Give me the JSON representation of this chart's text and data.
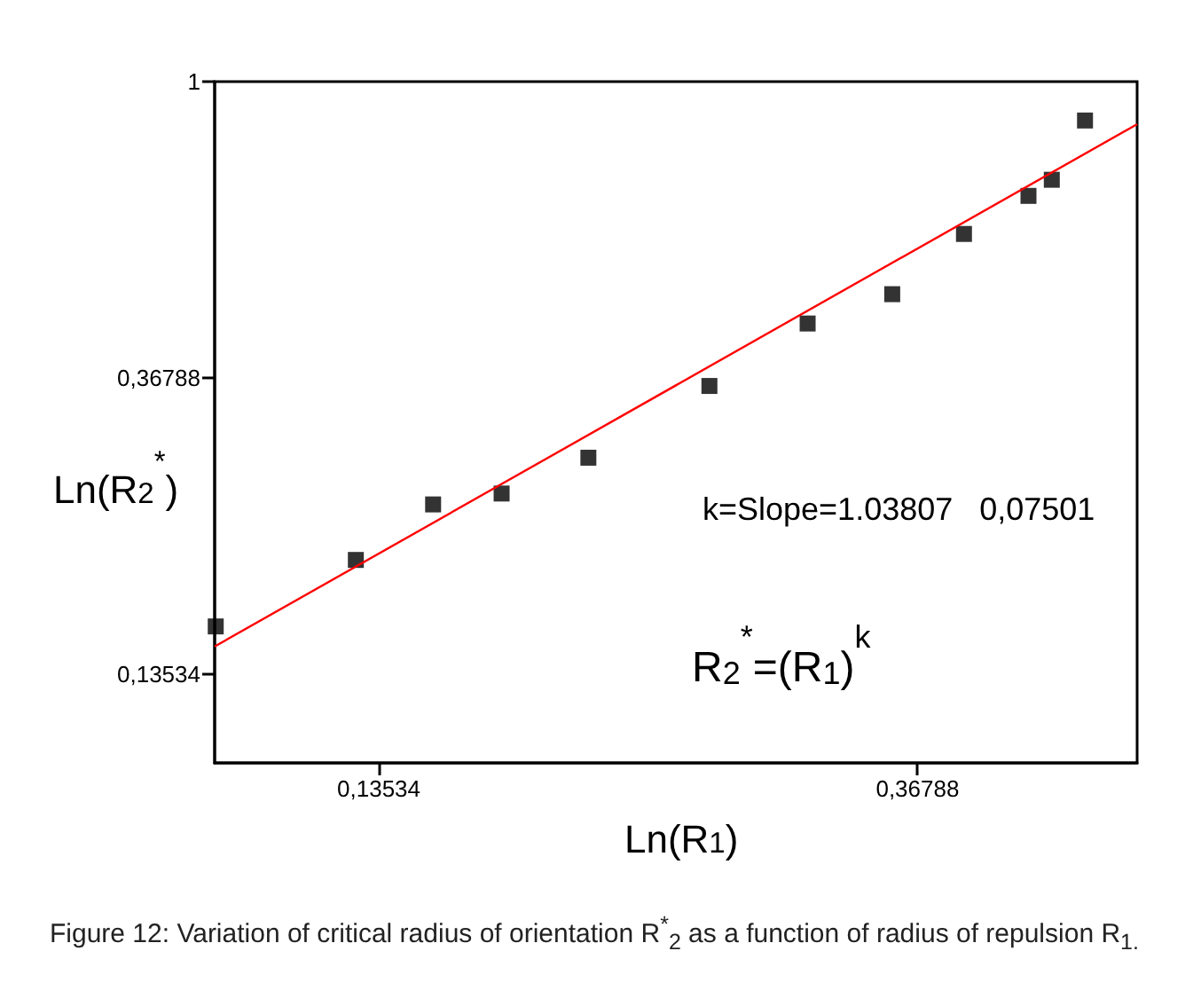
{
  "chart_data": {
    "type": "scatter",
    "xlabel": "Ln(R$_{1}$)",
    "ylabel": "Ln(R$_{2}$$^{*}$)",
    "log": "xy",
    "grid": false,
    "marker": "square",
    "xlim": [
      0.0998,
      0.553
    ],
    "ylim": [
      0.1003,
      1
    ],
    "xticks": [
      {
        "value": 0.13534,
        "label": "0,13534"
      },
      {
        "value": 0.36788,
        "label": "0,36788"
      }
    ],
    "yticks": [
      {
        "value": 0.13534,
        "label": "0,13534"
      },
      {
        "value": 0.36788,
        "label": "0,36788"
      },
      1
    ],
    "series": [
      {
        "color": "#000000",
        "x": [
          0.1,
          0.1297,
          0.1497,
          0.17,
          0.1997,
          0.25,
          0.3,
          0.351,
          0.401,
          0.452,
          0.472,
          0.502
        ],
        "values": [
          0.159,
          0.199,
          0.24,
          0.249,
          0.281,
          0.358,
          0.442,
          0.488,
          0.598,
          0.68,
          0.718,
          0.877
        ]
      },
      {
        "type": "line",
        "color": "#ff0000",
        "marker": "none",
        "x": [
          0.0998,
          0.553
        ],
        "values": [
          0.1486,
          0.866
        ]
      }
    ],
    "annotations": [
      "k=Slope=1.03807   0,07501",
      "R$_{2}$$^{*}$=(R$_{1}$)$^{k}$",
      "Figure 12: Variation of critical radius of orientation R$^{*}$$_{2}$ as a function of radius of repulsion R$_{1.}$"
    ]
  }
}
